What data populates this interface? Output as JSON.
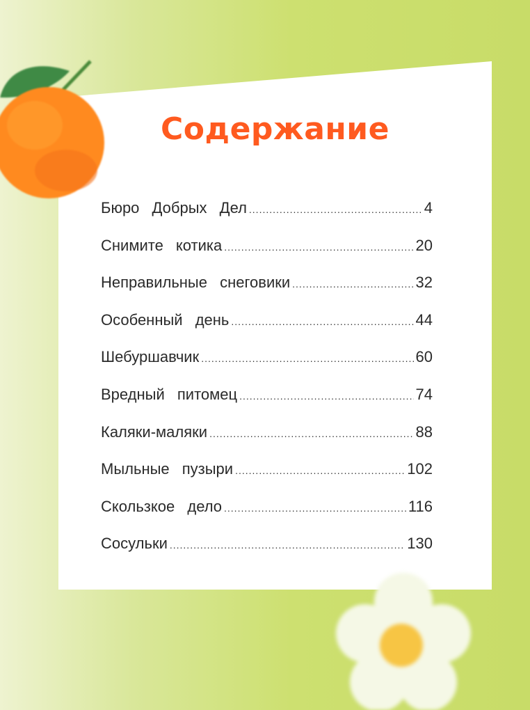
{
  "title": "Содержание",
  "colors": {
    "title": "#ff5a1f",
    "background": "#c8dc68",
    "panel": "#ffffff"
  },
  "decorations": [
    "orange-fruit-illustration",
    "daisy-flower-illustration"
  ],
  "entries": [
    {
      "title": "Бюро Добрых Дел",
      "page": "4"
    },
    {
      "title": "Снимите котика",
      "page": "20"
    },
    {
      "title": "Неправильные снеговики",
      "page": "32"
    },
    {
      "title": "Особенный день",
      "page": "44"
    },
    {
      "title": "Шебуршавчик",
      "page": "60"
    },
    {
      "title": "Вредный питомец",
      "page": "74"
    },
    {
      "title": "Каляки-маляки",
      "page": "88"
    },
    {
      "title": "Мыльные пузыри",
      "page": "102"
    },
    {
      "title": "Скользкое дело",
      "page": "116"
    },
    {
      "title": "Сосульки",
      "page": "130"
    }
  ]
}
